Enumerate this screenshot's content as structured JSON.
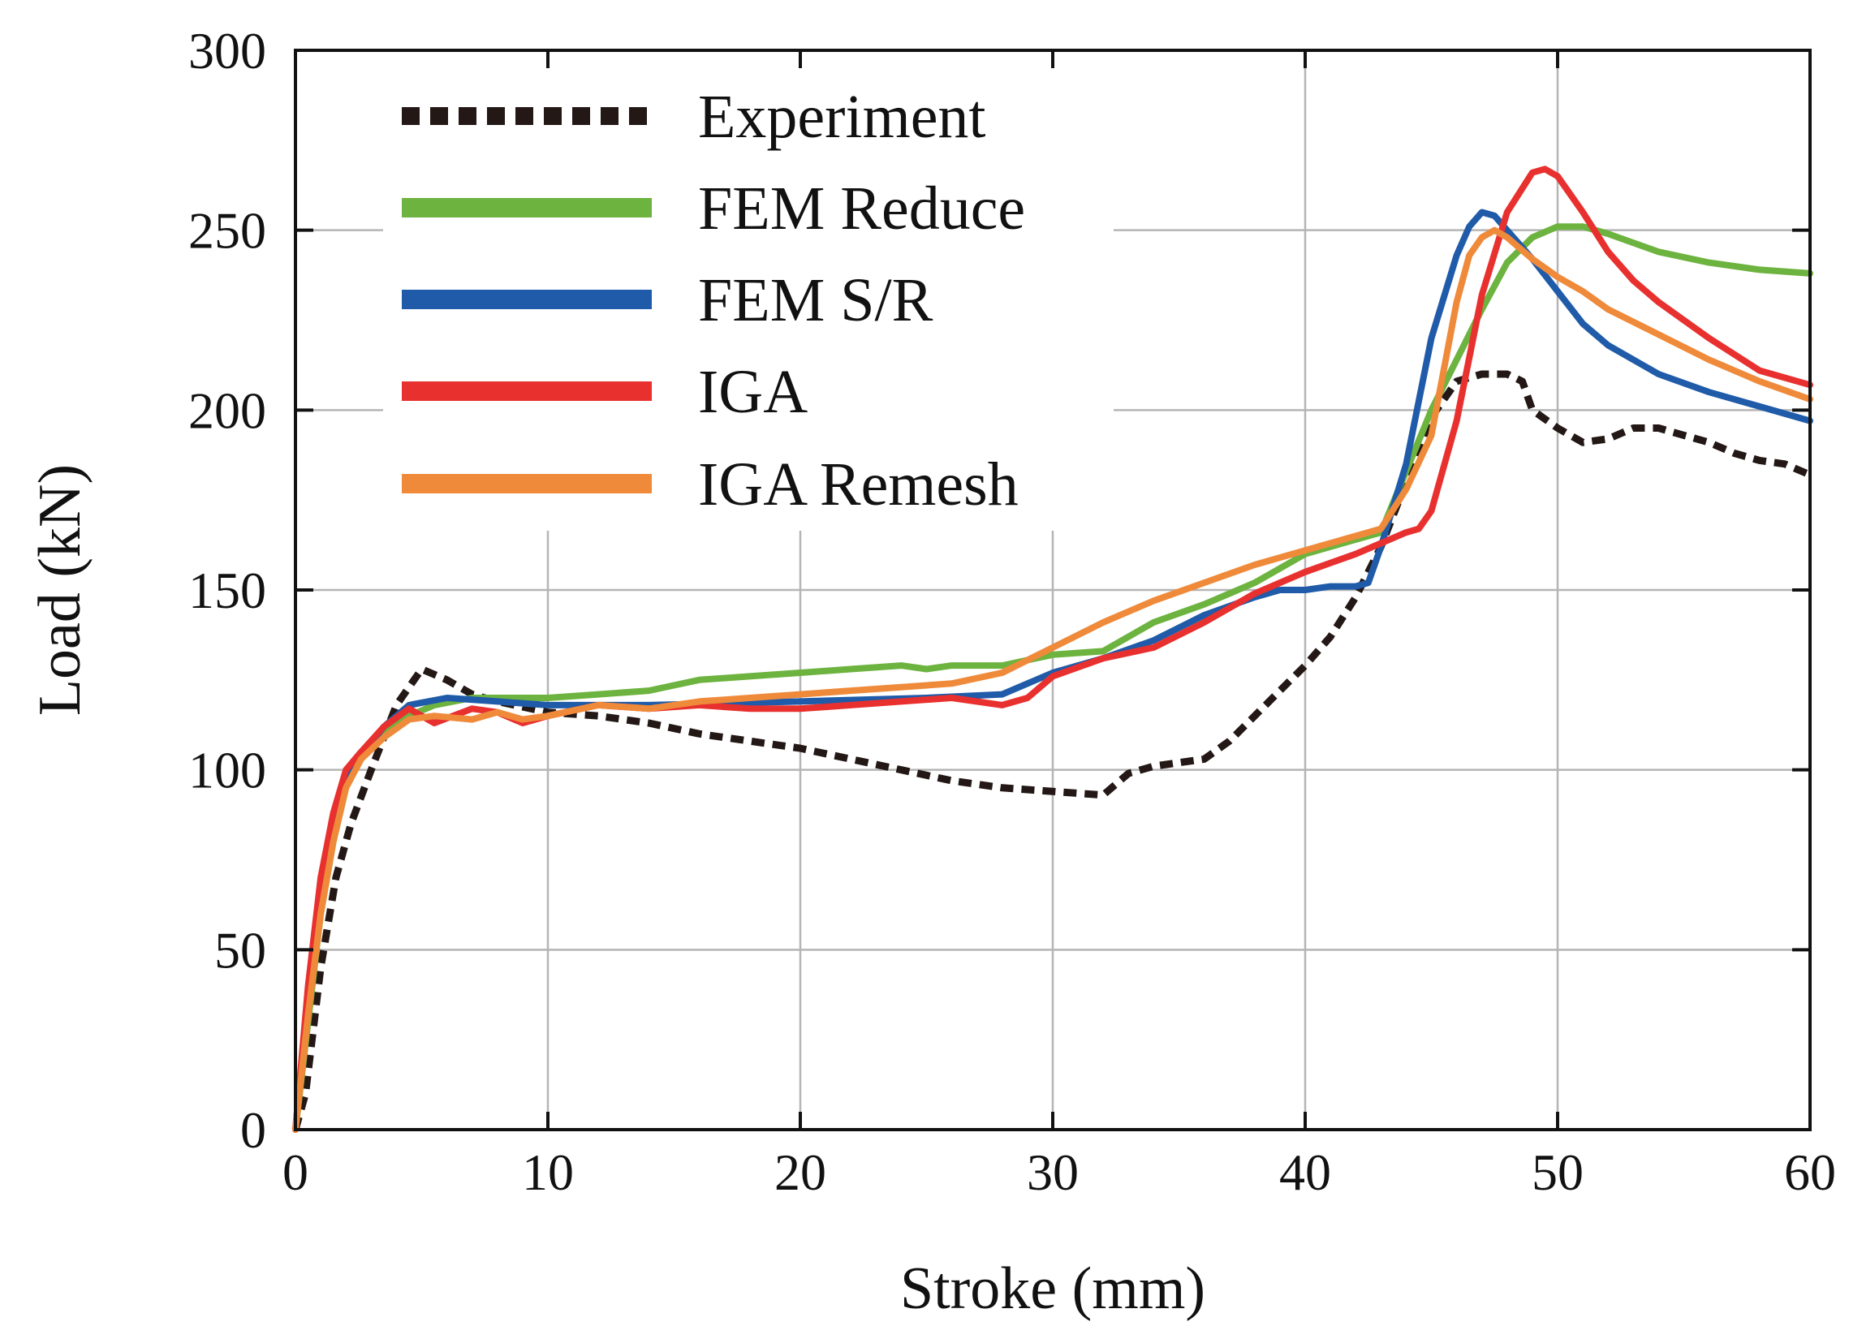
{
  "chart_data": {
    "type": "line",
    "title": "",
    "xlabel": "Stroke (mm)",
    "ylabel": "Load (kN)",
    "xlim": [
      0,
      60
    ],
    "ylim": [
      0,
      300
    ],
    "xticks": [
      0,
      10,
      20,
      30,
      40,
      50,
      60
    ],
    "yticks": [
      0,
      50,
      100,
      150,
      200,
      250,
      300
    ],
    "grid": true,
    "legend_position": "top-left",
    "series": [
      {
        "name": "Experiment",
        "color": "#231815",
        "style": "dashed",
        "x": [
          0,
          0.4,
          1,
          1.6,
          2.2,
          3,
          4,
          5,
          6,
          7,
          8,
          10,
          12,
          14,
          16,
          18,
          20,
          22,
          24,
          26,
          28,
          30,
          32,
          33,
          34,
          36,
          37,
          38,
          39,
          40,
          41,
          42,
          43,
          44,
          45,
          46,
          47,
          48,
          48.6,
          49,
          50,
          51,
          52,
          53,
          54,
          55,
          56,
          57,
          58,
          59,
          60
        ],
        "y": [
          0,
          10,
          45,
          70,
          85,
          100,
          118,
          128,
          125,
          121,
          119,
          116,
          115,
          113,
          110,
          108,
          106,
          103,
          100,
          97,
          95,
          94,
          93,
          99,
          101,
          103,
          108,
          115,
          122,
          129,
          137,
          148,
          162,
          180,
          198,
          208,
          210,
          210,
          208,
          200,
          195,
          191,
          192,
          195,
          195,
          193,
          191,
          188,
          186,
          185,
          182
        ]
      },
      {
        "name": "FEM Reduce",
        "color": "#6db33f",
        "style": "solid",
        "x": [
          0,
          0.5,
          1,
          1.5,
          2,
          2.6,
          3.5,
          4.5,
          5.5,
          7,
          10,
          12,
          14,
          16,
          18,
          20,
          22,
          24,
          25,
          26,
          28,
          30,
          32,
          33,
          34,
          36,
          38,
          40,
          42,
          43,
          44,
          45,
          46,
          47,
          48,
          49,
          50,
          51,
          52,
          54,
          56,
          58,
          60
        ],
        "y": [
          0,
          30,
          60,
          80,
          95,
          103,
          110,
          115,
          118,
          120,
          120,
          121,
          122,
          125,
          126,
          127,
          128,
          129,
          128,
          129,
          129,
          132,
          133,
          137,
          141,
          146,
          152,
          160,
          164,
          166,
          183,
          200,
          214,
          228,
          241,
          248,
          251,
          251,
          249,
          244,
          241,
          239,
          238
        ]
      },
      {
        "name": "FEM S/R",
        "color": "#1f5ba8",
        "style": "solid",
        "x": [
          0,
          0.5,
          1,
          1.5,
          2,
          2.6,
          3.5,
          4.5,
          6,
          8,
          10,
          14,
          20,
          25,
          28,
          30,
          32,
          34,
          36,
          38,
          39,
          40,
          41,
          42,
          42.5,
          43,
          44,
          45,
          46,
          46.5,
          47,
          47.5,
          48,
          49,
          50,
          51,
          52,
          54,
          56,
          58,
          60
        ],
        "y": [
          0,
          35,
          65,
          85,
          98,
          104,
          112,
          118,
          120,
          119,
          118,
          118,
          119,
          120,
          121,
          127,
          131,
          136,
          143,
          148,
          150,
          150,
          151,
          151,
          152,
          162,
          185,
          220,
          243,
          251,
          255,
          254,
          250,
          242,
          233,
          224,
          218,
          210,
          205,
          201,
          197
        ]
      },
      {
        "name": "IGA",
        "color": "#e8302f",
        "style": "solid",
        "x": [
          0,
          0.5,
          1,
          1.5,
          2,
          2.6,
          3.5,
          4.5,
          5.5,
          7,
          8,
          9,
          10,
          12,
          14,
          16,
          18,
          20,
          22,
          24,
          26,
          28,
          29,
          30,
          32,
          34,
          36,
          38,
          40,
          42,
          43,
          44,
          44.5,
          45,
          46,
          47,
          48,
          49,
          49.5,
          50,
          51,
          52,
          53,
          54,
          56,
          58,
          60
        ],
        "y": [
          0,
          40,
          70,
          88,
          100,
          105,
          112,
          117,
          113,
          117,
          116,
          113,
          115,
          118,
          117,
          118,
          117,
          117,
          118,
          119,
          120,
          118,
          120,
          126,
          131,
          134,
          141,
          149,
          155,
          160,
          163,
          166,
          167,
          172,
          197,
          232,
          255,
          266,
          267,
          265,
          255,
          244,
          236,
          230,
          220,
          211,
          207
        ]
      },
      {
        "name": "IGA Remesh",
        "color": "#ef8a3a",
        "style": "solid",
        "x": [
          0,
          0.5,
          1,
          1.5,
          2,
          2.6,
          3.5,
          4.5,
          5.5,
          7,
          8,
          9,
          10,
          12,
          14,
          16,
          18,
          20,
          22,
          24,
          26,
          28,
          30,
          32,
          34,
          36,
          38,
          40,
          42,
          43,
          44,
          45,
          46,
          46.5,
          47,
          47.5,
          48,
          49,
          50,
          51,
          52,
          54,
          56,
          58,
          60
        ],
        "y": [
          0,
          32,
          60,
          80,
          95,
          103,
          109,
          114,
          115,
          114,
          116,
          114,
          115,
          118,
          117,
          119,
          120,
          121,
          122,
          123,
          124,
          127,
          134,
          141,
          147,
          152,
          157,
          161,
          165,
          167,
          178,
          193,
          230,
          243,
          248,
          250,
          248,
          242,
          237,
          233,
          228,
          221,
          214,
          208,
          203
        ]
      }
    ]
  }
}
